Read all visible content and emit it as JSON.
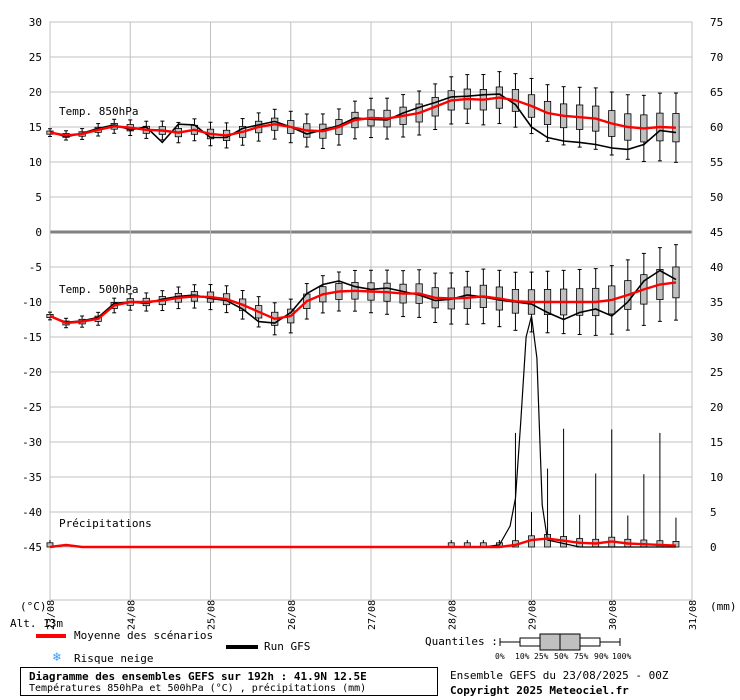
{
  "chart_data": {
    "type": "line",
    "title": "Diagramme des ensembles GEFS sur 192h : 41.9N 12.5E",
    "subtitle": "Températures 850hPa et 500hPa (°C) , précipitations (mm)",
    "run_info": "Ensemble GEFS du 23/08/2025 - 00Z",
    "copyright": "Copyright 2025 Meteociel.fr",
    "altitude": "Alt. 13m",
    "left_unit": "(°C)",
    "right_unit": "(mm)",
    "left_ticks": [
      "30",
      "25",
      "20",
      "15",
      "10",
      "5",
      "0",
      "-5",
      "-10",
      "-15",
      "-20",
      "-25",
      "-30",
      "-35",
      "-40",
      "-45"
    ],
    "right_ticks_upper": [
      "75",
      "70",
      "65",
      "60",
      "55",
      "50",
      "45"
    ],
    "right_ticks_lower": [
      "40",
      "35",
      "30",
      "25",
      "20",
      "15",
      "10",
      "5",
      "0"
    ],
    "date_labels": [
      "23/08",
      "24/08",
      "25/08",
      "26/08",
      "27/08",
      "28/08",
      "29/08",
      "30/08",
      "31/08"
    ],
    "panel_labels": {
      "t850": "Temp. 850hPa",
      "t500": "Temp. 500hPa",
      "precip": "Précipitations"
    },
    "legend": {
      "mean": "Moyenne des scénarios",
      "run": "Run GFS",
      "snow": "Risque neige",
      "quantiles": "Quantiles :",
      "quantile_labels": [
        "0%",
        "10%",
        "25%",
        "50%",
        "75%",
        "90%",
        "100%"
      ]
    },
    "colors": {
      "mean": "#ff0000",
      "run": "#000000",
      "box": "#c0c0c0",
      "grid": "#c0c0c0",
      "snow": "#3399ff"
    },
    "x_hours": [
      0,
      24,
      48,
      72,
      96,
      120,
      144,
      168,
      192
    ],
    "t850": {
      "mean": [
        [
          0,
          14.2
        ],
        [
          6,
          13.8
        ],
        [
          12,
          14.0
        ],
        [
          18,
          14.6
        ],
        [
          24,
          15.1
        ],
        [
          30,
          14.9
        ],
        [
          36,
          14.6
        ],
        [
          42,
          14.5
        ],
        [
          48,
          14.2
        ],
        [
          54,
          14.6
        ],
        [
          60,
          14.0
        ],
        [
          66,
          13.8
        ],
        [
          72,
          14.3
        ],
        [
          78,
          15.0
        ],
        [
          84,
          15.4
        ],
        [
          90,
          15.0
        ],
        [
          96,
          14.5
        ],
        [
          102,
          14.4
        ],
        [
          108,
          15.0
        ],
        [
          114,
          16.0
        ],
        [
          120,
          16.3
        ],
        [
          126,
          16.2
        ],
        [
          132,
          16.6
        ],
        [
          138,
          17.0
        ],
        [
          144,
          17.9
        ],
        [
          150,
          18.8
        ],
        [
          156,
          19.0
        ],
        [
          162,
          18.9
        ],
        [
          168,
          19.2
        ],
        [
          174,
          18.8
        ],
        [
          180,
          18.0
        ],
        [
          186,
          17.0
        ],
        [
          192,
          16.6
        ],
        [
          198,
          16.4
        ],
        [
          204,
          16.2
        ],
        [
          210,
          15.5
        ],
        [
          216,
          15.0
        ],
        [
          222,
          14.8
        ],
        [
          228,
          15.0
        ],
        [
          234,
          14.9
        ]
      ],
      "run": [
        [
          0,
          14.3
        ],
        [
          6,
          13.6
        ],
        [
          12,
          14.1
        ],
        [
          18,
          14.8
        ],
        [
          24,
          15.3
        ],
        [
          30,
          14.6
        ],
        [
          36,
          15.0
        ],
        [
          42,
          12.8
        ],
        [
          48,
          15.4
        ],
        [
          54,
          15.3
        ],
        [
          60,
          13.5
        ],
        [
          66,
          13.5
        ],
        [
          72,
          14.8
        ],
        [
          78,
          15.3
        ],
        [
          84,
          15.8
        ],
        [
          90,
          15.0
        ],
        [
          96,
          14.0
        ],
        [
          102,
          14.6
        ],
        [
          108,
          15.2
        ],
        [
          114,
          16.3
        ],
        [
          120,
          16.1
        ],
        [
          126,
          16.0
        ],
        [
          132,
          17.0
        ],
        [
          138,
          17.8
        ],
        [
          144,
          18.5
        ],
        [
          150,
          19.3
        ],
        [
          156,
          19.4
        ],
        [
          162,
          19.6
        ],
        [
          168,
          19.7
        ],
        [
          174,
          18.2
        ],
        [
          180,
          15.0
        ],
        [
          186,
          13.5
        ],
        [
          192,
          13.0
        ],
        [
          198,
          12.8
        ],
        [
          204,
          12.5
        ],
        [
          210,
          12.0
        ],
        [
          216,
          11.8
        ],
        [
          222,
          12.5
        ],
        [
          228,
          14.5
        ],
        [
          234,
          14.2
        ]
      ]
    },
    "t500": {
      "mean": [
        [
          0,
          -12.0
        ],
        [
          6,
          -13.0
        ],
        [
          12,
          -12.8
        ],
        [
          18,
          -12.4
        ],
        [
          24,
          -10.5
        ],
        [
          30,
          -10.0
        ],
        [
          36,
          -10.0
        ],
        [
          42,
          -9.8
        ],
        [
          48,
          -9.4
        ],
        [
          54,
          -9.2
        ],
        [
          60,
          -9.3
        ],
        [
          66,
          -9.6
        ],
        [
          72,
          -10.4
        ],
        [
          78,
          -11.4
        ],
        [
          84,
          -12.4
        ],
        [
          90,
          -12.0
        ],
        [
          96,
          -9.9
        ],
        [
          102,
          -8.9
        ],
        [
          108,
          -8.5
        ],
        [
          114,
          -8.4
        ],
        [
          120,
          -8.5
        ],
        [
          126,
          -8.6
        ],
        [
          132,
          -8.8
        ],
        [
          138,
          -8.8
        ],
        [
          144,
          -9.4
        ],
        [
          150,
          -9.5
        ],
        [
          156,
          -9.4
        ],
        [
          162,
          -9.2
        ],
        [
          168,
          -9.5
        ],
        [
          174,
          -9.9
        ],
        [
          180,
          -10.0
        ],
        [
          186,
          -10.0
        ],
        [
          192,
          -10.0
        ],
        [
          198,
          -10.0
        ],
        [
          204,
          -10.0
        ],
        [
          210,
          -9.7
        ],
        [
          216,
          -9.0
        ],
        [
          222,
          -8.2
        ],
        [
          228,
          -7.5
        ],
        [
          234,
          -7.2
        ]
      ],
      "run": [
        [
          0,
          -12.0
        ],
        [
          6,
          -12.9
        ],
        [
          12,
          -12.7
        ],
        [
          18,
          -12.2
        ],
        [
          24,
          -10.2
        ],
        [
          30,
          -10.0
        ],
        [
          36,
          -10.2
        ],
        [
          42,
          -9.6
        ],
        [
          48,
          -9.2
        ],
        [
          54,
          -9.0
        ],
        [
          60,
          -9.5
        ],
        [
          66,
          -9.8
        ],
        [
          72,
          -11.0
        ],
        [
          78,
          -12.8
        ],
        [
          84,
          -13.0
        ],
        [
          90,
          -11.5
        ],
        [
          96,
          -8.8
        ],
        [
          102,
          -7.5
        ],
        [
          108,
          -7.0
        ],
        [
          114,
          -7.8
        ],
        [
          120,
          -8.2
        ],
        [
          126,
          -8.0
        ],
        [
          132,
          -8.5
        ],
        [
          138,
          -9.0
        ],
        [
          144,
          -9.8
        ],
        [
          150,
          -9.6
        ],
        [
          156,
          -9.0
        ],
        [
          162,
          -9.3
        ],
        [
          168,
          -9.7
        ],
        [
          174,
          -10.0
        ],
        [
          180,
          -10.3
        ],
        [
          186,
          -11.5
        ],
        [
          192,
          -12.5
        ],
        [
          198,
          -11.5
        ],
        [
          204,
          -11.0
        ],
        [
          210,
          -12.0
        ],
        [
          216,
          -10.0
        ],
        [
          222,
          -7.0
        ],
        [
          228,
          -5.5
        ],
        [
          234,
          -6.8
        ]
      ]
    },
    "precip": {
      "mean": [
        [
          0,
          0.0
        ],
        [
          6,
          0.3
        ],
        [
          12,
          0.0
        ],
        [
          24,
          0.0
        ],
        [
          72,
          0.0
        ],
        [
          120,
          0.0
        ],
        [
          144,
          0.0
        ],
        [
          162,
          0.0
        ],
        [
          168,
          0.0
        ],
        [
          174,
          0.3
        ],
        [
          180,
          1.0
        ],
        [
          186,
          1.2
        ],
        [
          192,
          0.9
        ],
        [
          198,
          0.6
        ],
        [
          204,
          0.5
        ],
        [
          210,
          0.8
        ],
        [
          216,
          0.5
        ],
        [
          222,
          0.4
        ],
        [
          228,
          0.3
        ],
        [
          234,
          0.2
        ]
      ],
      "run": [
        [
          0,
          0.0
        ],
        [
          6,
          0.2
        ],
        [
          12,
          0.0
        ],
        [
          24,
          0.0
        ],
        [
          48,
          0.0
        ],
        [
          120,
          0.0
        ],
        [
          162,
          0.0
        ],
        [
          168,
          0.3
        ],
        [
          172,
          3.0
        ],
        [
          174,
          7.0
        ],
        [
          176,
          18.0
        ],
        [
          178,
          30.0
        ],
        [
          180,
          33.0
        ],
        [
          182,
          27.0
        ],
        [
          184,
          6.0
        ],
        [
          186,
          1.0
        ],
        [
          192,
          0.5
        ],
        [
          198,
          0.0
        ],
        [
          204,
          0.0
        ],
        [
          234,
          0.0
        ]
      ]
    }
  }
}
